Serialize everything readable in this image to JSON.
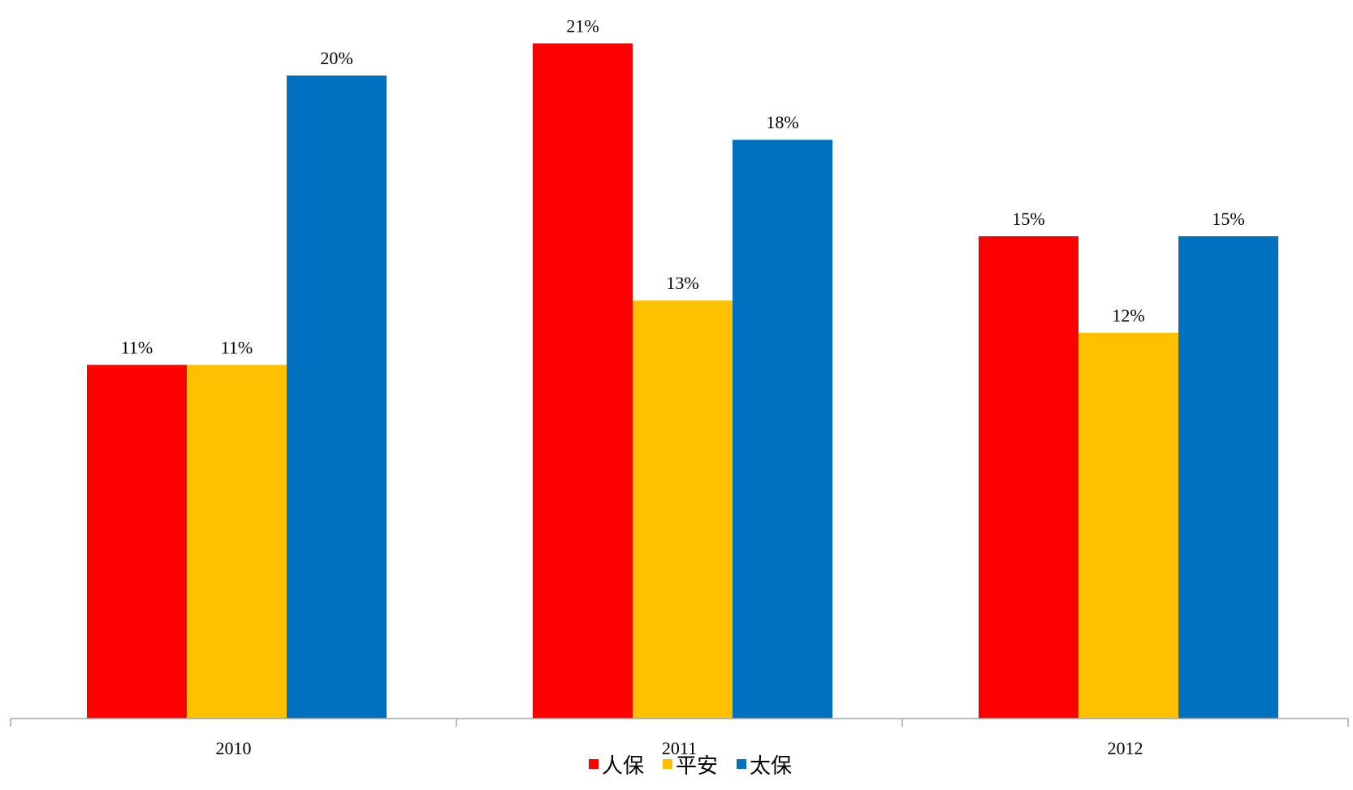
{
  "chart_data": {
    "type": "bar",
    "categories": [
      "2010",
      "2011",
      "2012"
    ],
    "series": [
      {
        "name": "人保",
        "color": "#FF0000",
        "values": [
          11,
          21,
          15
        ],
        "labels": [
          "11%",
          "21%",
          "15%"
        ]
      },
      {
        "name": "平安",
        "color": "#FFC000",
        "values": [
          11,
          13,
          12
        ],
        "labels": [
          "11%",
          "13%",
          "12%"
        ]
      },
      {
        "name": "太保",
        "color": "#0070C0",
        "values": [
          20,
          18,
          15
        ],
        "labels": [
          "20%",
          "18%",
          "15%"
        ]
      }
    ],
    "title": "",
    "xlabel": "",
    "ylabel": "",
    "ylim": [
      0,
      22
    ],
    "grid": false,
    "legend": "bottom",
    "axis_color": "#A6A6A6"
  }
}
